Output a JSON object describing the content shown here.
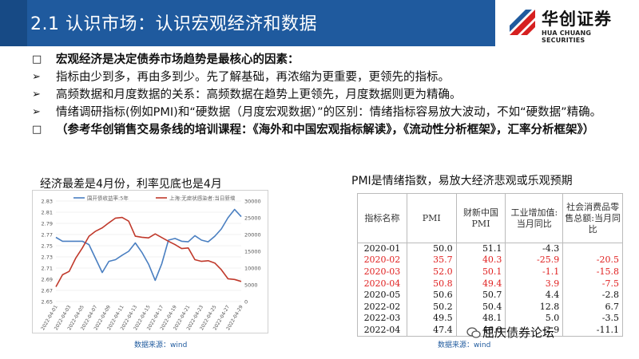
{
  "header": {
    "title": "2.1 认识市场：认识宏观经济和数据"
  },
  "logo": {
    "cn": "华创证券",
    "en": "HUA CHUANG SECURITIES"
  },
  "bullets": [
    {
      "marker": "□",
      "text": "宏观经济是决定债券市场趋势是最核心的因素：",
      "bold": true
    },
    {
      "marker": "➢",
      "text": "指标由少到多，再由多到少。先了解基础，再浓缩为更重要，更领先的指标。",
      "bold": false
    },
    {
      "marker": "➢",
      "text": "高频数据和月度数据的关系：高频数据在趋势上更领先，月度数据则更为精确。",
      "bold": false
    },
    {
      "marker": "➢",
      "text": "情绪调研指标(例如PMI)和“硬数据（月度宏观数据）”的区别：情绪指标容易放大波动，不如“硬数据”精确。",
      "bold": false
    },
    {
      "marker": "□",
      "text": "（参考华创销售交易条线的培训课程：《海外和中国宏观指标解读》，《流动性分析框架》，汇率分析框架》）",
      "bold": true
    }
  ],
  "left_title": "经济最差是4月份，利率见底也是4月",
  "right_title": "PMI是情绪指数，易放大经济悲观或乐观预期",
  "chart_data": {
    "type": "line",
    "title": "",
    "x": [
      "2022-04-01",
      "2022-04-02",
      "2022-04-03",
      "2022-04-04",
      "2022-04-05",
      "2022-04-06",
      "2022-04-07",
      "2022-04-08",
      "2022-04-09",
      "2022-04-10",
      "2022-04-11",
      "2022-04-12",
      "2022-04-13",
      "2022-04-14",
      "2022-04-15",
      "2022-04-16",
      "2022-04-17",
      "2022-04-18",
      "2022-04-19",
      "2022-04-20",
      "2022-04-21",
      "2022-04-22",
      "2022-04-23",
      "2022-04-24",
      "2022-04-25",
      "2022-04-26",
      "2022-04-27",
      "2022-04-28",
      "2022-04-29"
    ],
    "x_tick_labels": [
      "2022-04-01",
      "2022-04-03",
      "2022-04-05",
      "2022-04-07",
      "2022-04-09",
      "2022-04-11",
      "2022-04-13",
      "2022-04-15",
      "2022-04-17",
      "2022-04-19",
      "2022-04-21",
      "2022-04-23",
      "2022-04-25",
      "2022-04-27",
      "2022-04-29"
    ],
    "y_left": {
      "lim": [
        2.65,
        2.83
      ],
      "ticks": [
        "2.83",
        "2.81",
        "2.79",
        "2.77",
        "2.75",
        "2.73",
        "2.71",
        "2.69",
        "2.67",
        "2.65"
      ]
    },
    "y_right": {
      "lim": [
        0,
        30000
      ],
      "ticks": [
        "30000",
        "25000",
        "20000",
        "15000",
        "10000",
        "5000",
        "0"
      ]
    },
    "legend_position": "top",
    "series": [
      {
        "name": "国开债收益率:5年",
        "axis": "left",
        "color": "#4a7fc1",
        "values": [
          2.765,
          2.758,
          2.758,
          2.758,
          2.758,
          2.752,
          2.727,
          2.702,
          2.722,
          2.725,
          2.733,
          2.74,
          2.755,
          2.738,
          2.717,
          2.688,
          2.718,
          2.76,
          2.763,
          2.758,
          2.757,
          2.768,
          2.76,
          2.757,
          2.767,
          2.78,
          2.8,
          2.815,
          2.802
        ]
      },
      {
        "name": "上海:无症状感染者:当日新增",
        "axis": "right",
        "color": "#c0392b",
        "values": [
          4400,
          8000,
          9000,
          13000,
          16000,
          19500,
          21000,
          22000,
          23500,
          24900,
          25100,
          24000,
          19500,
          19200,
          19000,
          20200,
          19100,
          18000,
          17000,
          15800,
          16000,
          12500,
          12000,
          12200,
          11500,
          9500,
          6800,
          6600,
          6000
        ]
      }
    ]
  },
  "table": {
    "headers": [
      "指标名称",
      "PMI",
      "财新中国PMI",
      "工业增加值:当月同比",
      "社会消费品零售总额:当月同比"
    ],
    "rows": [
      {
        "cells": [
          "2020-01",
          "50.0",
          "51.1",
          "-4.3",
          ""
        ],
        "highlight": false
      },
      {
        "cells": [
          "2020-02",
          "35.7",
          "40.3",
          "-25.9",
          "-20.5"
        ],
        "highlight": true
      },
      {
        "cells": [
          "2020-03",
          "52.0",
          "50.1",
          "-1.1",
          "-15.8"
        ],
        "highlight": true
      },
      {
        "cells": [
          "2020-04",
          "50.8",
          "49.4",
          "3.9",
          "-7.5"
        ],
        "highlight": true
      },
      {
        "cells": [
          "2020-05",
          "50.6",
          "50.7",
          "4.4",
          "-2.8"
        ],
        "highlight": false
      },
      {
        "cells": [
          "2022-02",
          "50.2",
          "50.4",
          "12.8",
          "6.7"
        ],
        "highlight": false
      },
      {
        "cells": [
          "2022-03",
          "49.5",
          "48.1",
          "5.0",
          "-3.5"
        ],
        "highlight": false
      },
      {
        "cells": [
          "2022-04",
          "47.4",
          "46.0",
          "-2.9",
          "-11.1"
        ],
        "highlight": false
      }
    ]
  },
  "source_left": "数据来源：wind",
  "source_right": "数据来源：wind",
  "watermark": "屈庆债券论坛"
}
